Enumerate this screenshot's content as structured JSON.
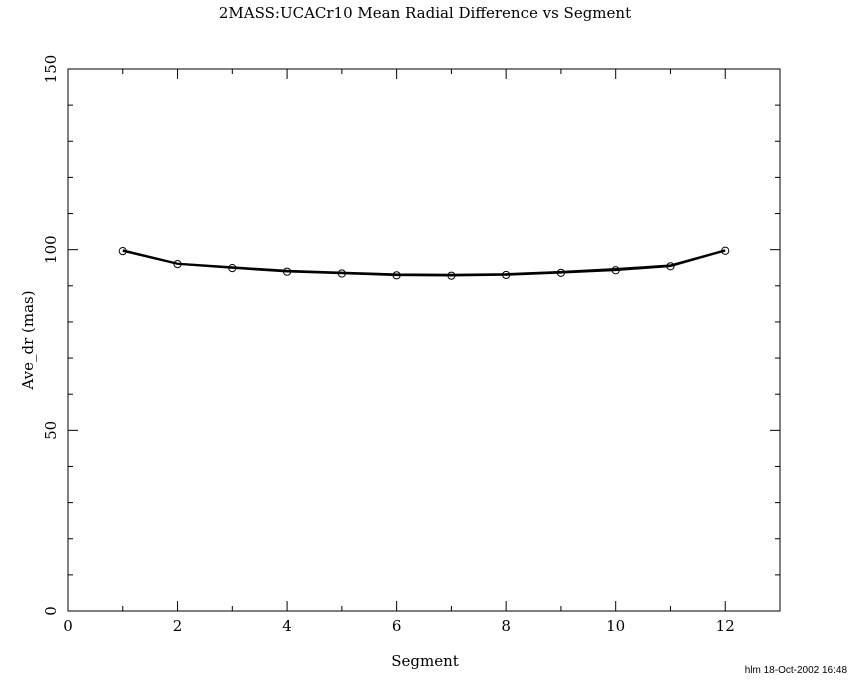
{
  "chart_data": {
    "type": "line",
    "title": "2MASS:UCACr10 Mean Radial Difference vs Segment",
    "xlabel": "Segment",
    "ylabel": "Ave_dr (mas)",
    "xlim": [
      0,
      13
    ],
    "ylim": [
      0,
      150
    ],
    "xticks": [
      "0",
      "2",
      "4",
      "6",
      "8",
      "10",
      "12"
    ],
    "yticks": [
      "0",
      "50",
      "100",
      "150"
    ],
    "grid": false,
    "legend": "none",
    "footer": "hlm 18-Oct-2002 16:48",
    "series": [
      {
        "markers": true,
        "x": [
          1,
          2,
          3,
          4,
          5,
          6,
          7,
          8,
          9,
          10,
          11,
          12
        ],
        "y": [
          99.6,
          96.0,
          94.9,
          93.9,
          93.4,
          92.9,
          92.8,
          93.0,
          93.6,
          94.3,
          95.4,
          99.7
        ]
      },
      {
        "markers": false,
        "x": [
          1,
          2,
          3,
          4,
          5,
          6,
          7,
          8,
          9,
          10,
          11,
          12
        ],
        "y": [
          99.9,
          96.2,
          95.2,
          94.2,
          93.7,
          93.2,
          93.1,
          93.3,
          93.9,
          94.7,
          95.7,
          99.9
        ]
      }
    ]
  }
}
